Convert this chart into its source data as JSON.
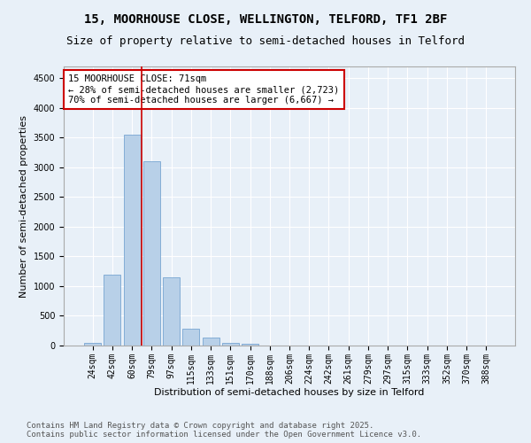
{
  "title_line1": "15, MOORHOUSE CLOSE, WELLINGTON, TELFORD, TF1 2BF",
  "title_line2": "Size of property relative to semi-detached houses in Telford",
  "xlabel": "Distribution of semi-detached houses by size in Telford",
  "ylabel": "Number of semi-detached properties",
  "categories": [
    "24sqm",
    "42sqm",
    "60sqm",
    "79sqm",
    "97sqm",
    "115sqm",
    "133sqm",
    "151sqm",
    "170sqm",
    "188sqm",
    "206sqm",
    "224sqm",
    "242sqm",
    "261sqm",
    "279sqm",
    "297sqm",
    "315sqm",
    "333sqm",
    "352sqm",
    "370sqm",
    "388sqm"
  ],
  "values": [
    50,
    1200,
    3550,
    3100,
    1150,
    280,
    130,
    50,
    30,
    0,
    0,
    0,
    0,
    0,
    0,
    0,
    0,
    0,
    0,
    0,
    0
  ],
  "bar_color": "#b8d0e8",
  "bar_edge_color": "#6699cc",
  "vline_x_index": 2.5,
  "vline_color": "#cc0000",
  "annotation_text": "15 MOORHOUSE CLOSE: 71sqm\n← 28% of semi-detached houses are smaller (2,723)\n70% of semi-detached houses are larger (6,667) →",
  "annotation_box_color": "#ffffff",
  "annotation_box_edge": "#cc0000",
  "ylim": [
    0,
    4700
  ],
  "yticks": [
    0,
    500,
    1000,
    1500,
    2000,
    2500,
    3000,
    3500,
    4000,
    4500
  ],
  "bg_color": "#e8f0f8",
  "grid_color": "#ffffff",
  "footer_line1": "Contains HM Land Registry data © Crown copyright and database right 2025.",
  "footer_line2": "Contains public sector information licensed under the Open Government Licence v3.0.",
  "title_fontsize": 10,
  "subtitle_fontsize": 9,
  "axis_label_fontsize": 8,
  "tick_fontsize": 7,
  "annotation_fontsize": 7.5,
  "footer_fontsize": 6.5
}
